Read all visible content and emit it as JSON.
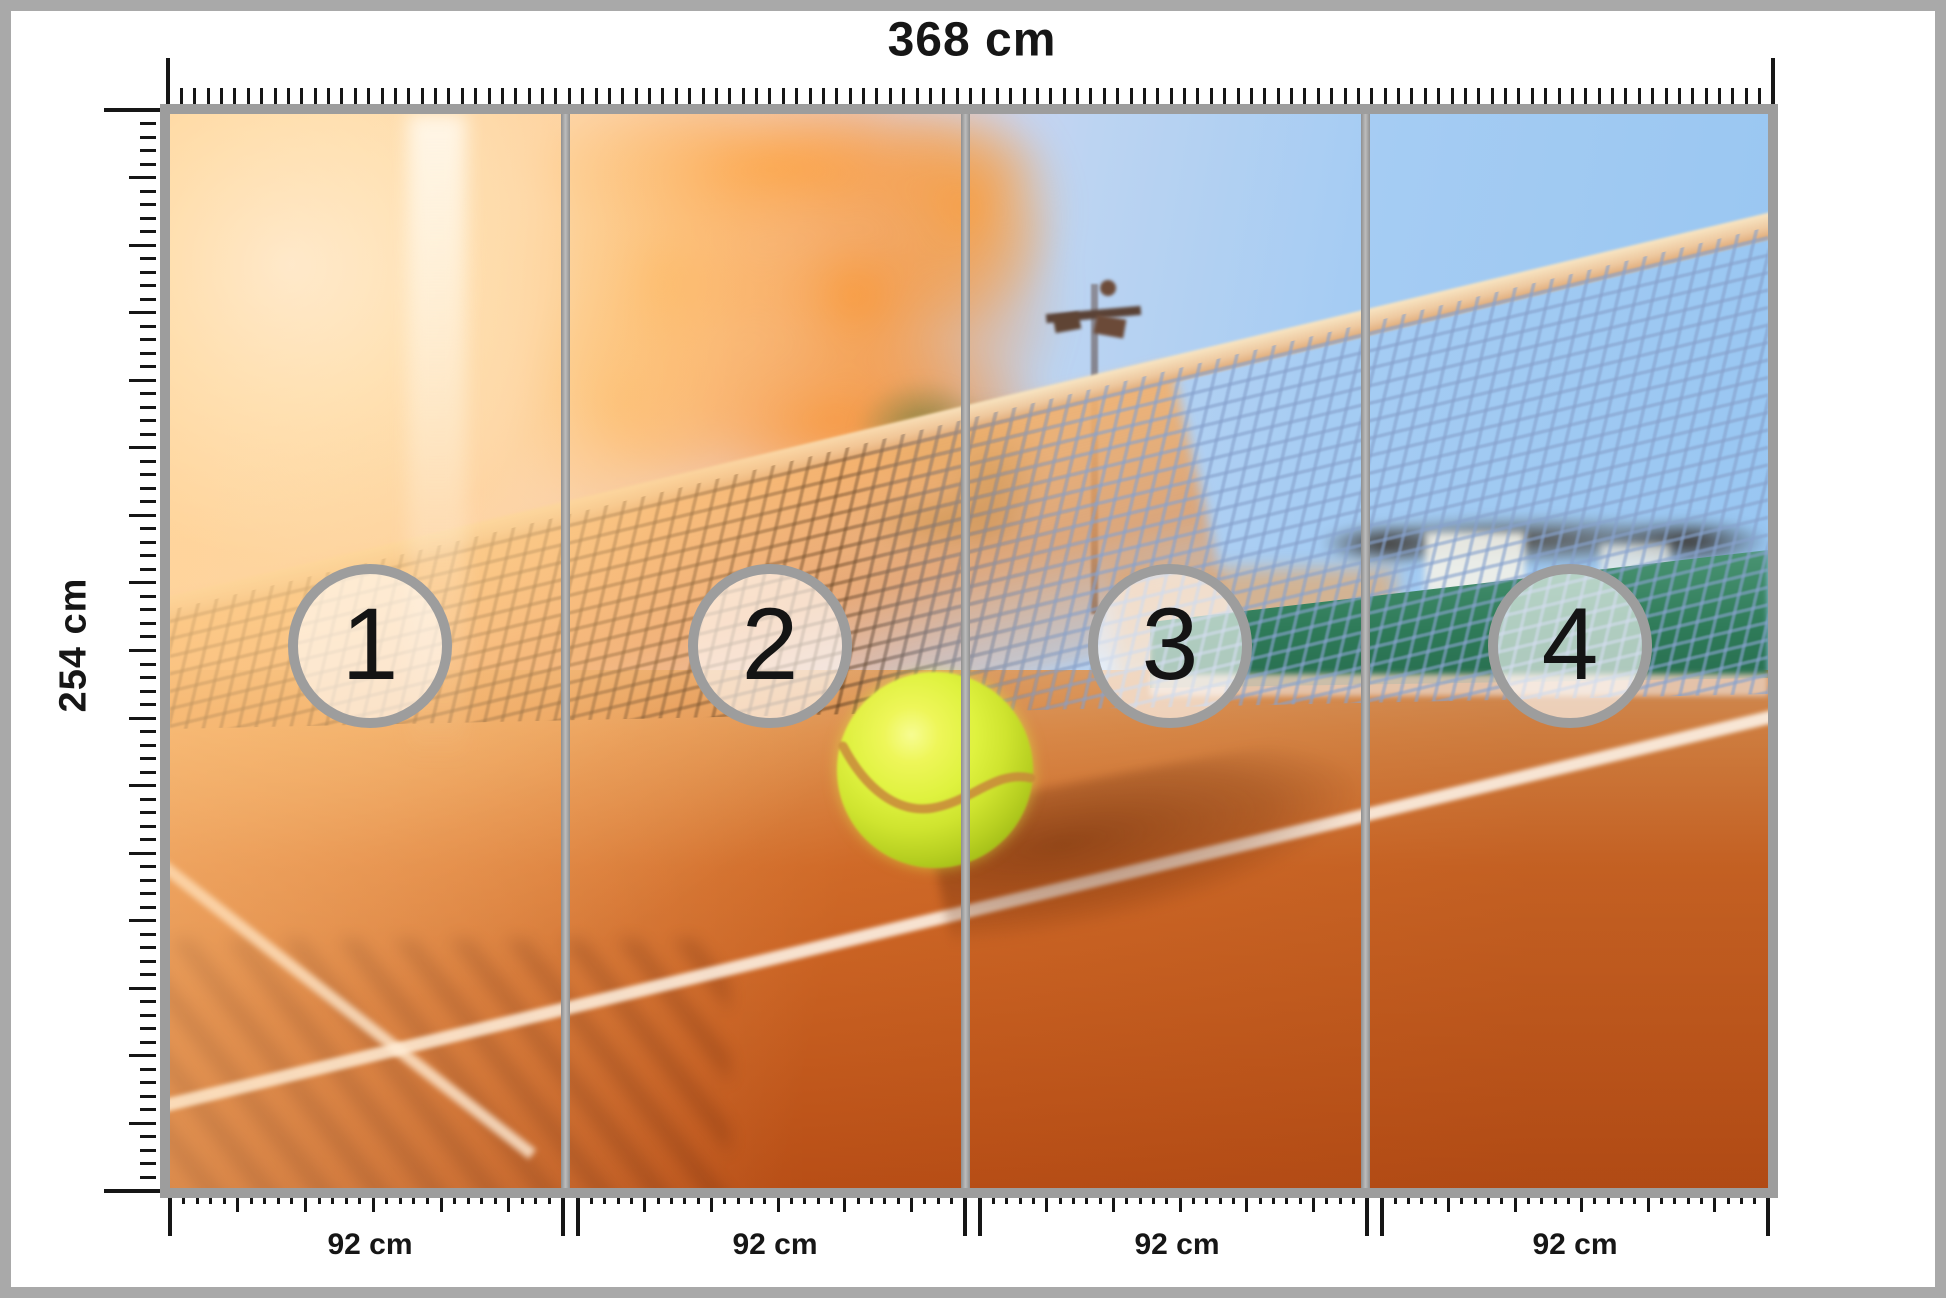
{
  "mural": {
    "total_width_label": "368 cm",
    "height_label": "254 cm",
    "panels": [
      {
        "number": "1",
        "width_label": "92 cm"
      },
      {
        "number": "2",
        "width_label": "92 cm"
      },
      {
        "number": "3",
        "width_label": "92 cm"
      },
      {
        "number": "4",
        "width_label": "92 cm"
      }
    ]
  },
  "scene": {
    "description": "tennis court clay close-up with tennis ball at net, sun flare left, blue sky right"
  },
  "colors": {
    "outer_border_gray": "#a9a9a9",
    "frame_gray": "#9d9d9d",
    "badge_ring_gray": "#9d9d9d",
    "tick_black": "#161616",
    "clay_orange": "#d06a28",
    "sky_blue": "#96c5f1",
    "sun_flare": "#ffd9a0",
    "net_band_cream": "#eec9a0",
    "windscreen_green": "#2e7a58",
    "ball_yellow": "#dff23f"
  }
}
